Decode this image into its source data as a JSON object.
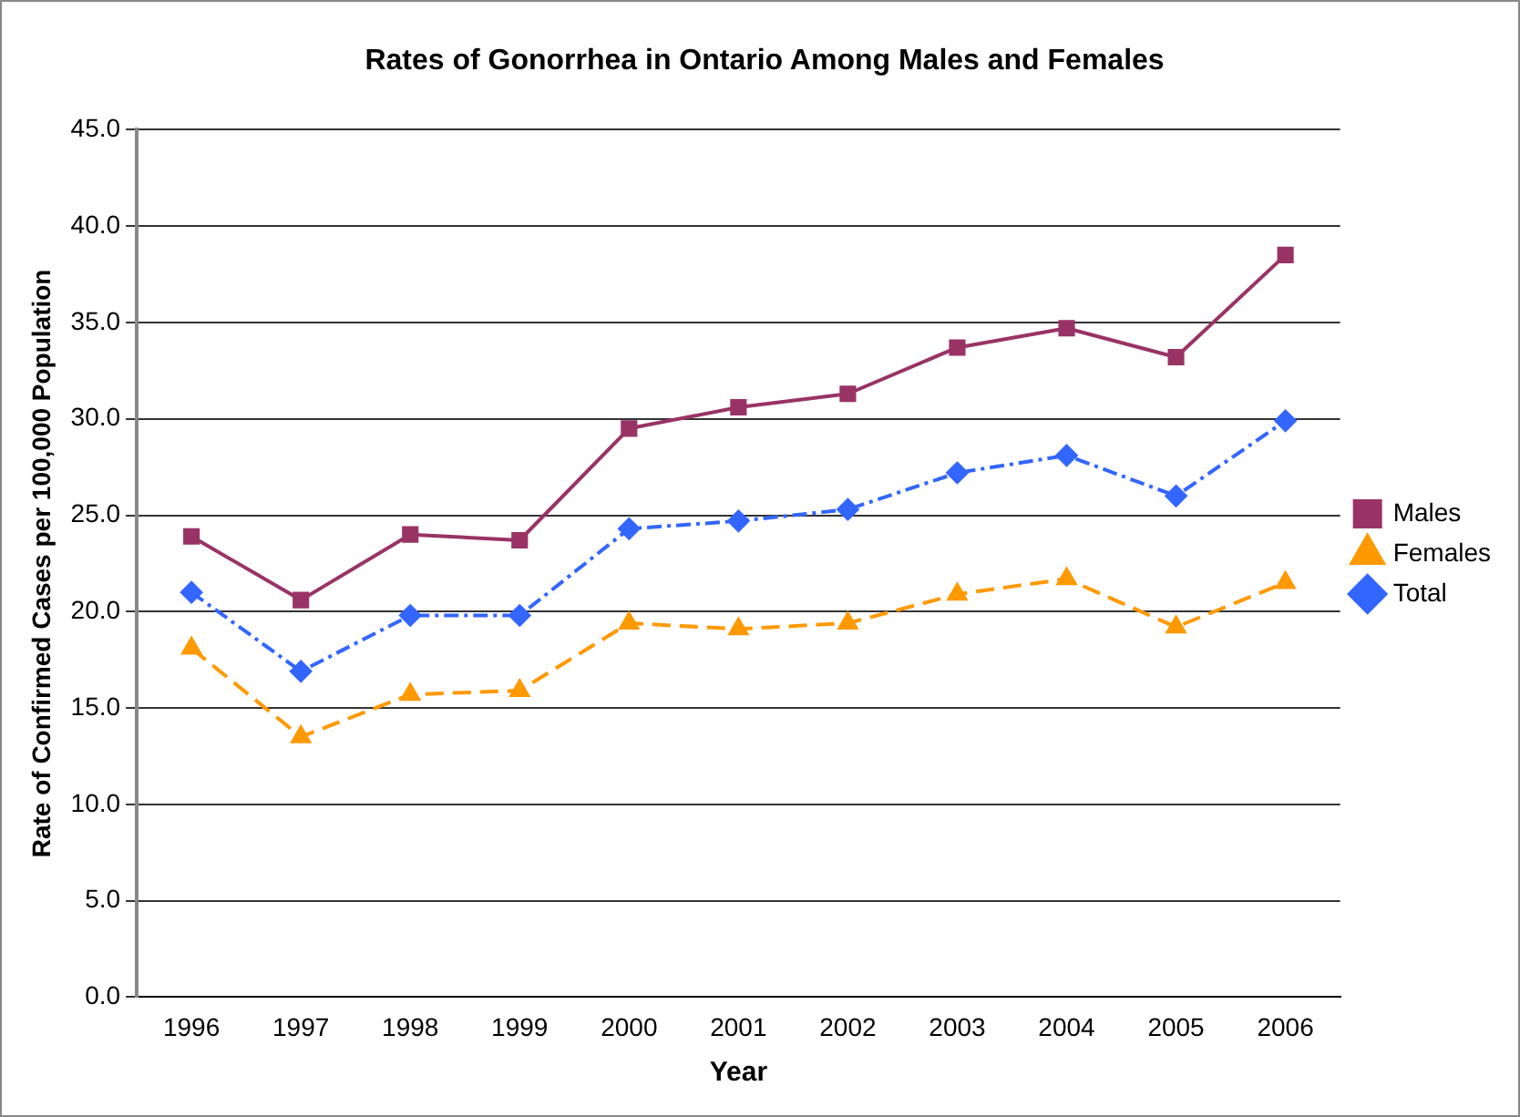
{
  "chart_data": {
    "type": "line",
    "title": "Rates of Gonorrhea in Ontario Among Males and Females",
    "xlabel": "Year",
    "ylabel": "Rate of Confirmed Cases per 100,000 Population",
    "categories": [
      "1996",
      "1997",
      "1998",
      "1999",
      "2000",
      "2001",
      "2002",
      "2003",
      "2004",
      "2005",
      "2006"
    ],
    "series": [
      {
        "name": "Males",
        "color": "#993366",
        "marker": "square",
        "line_style": "solid",
        "values": [
          23.9,
          20.6,
          24.0,
          23.7,
          29.5,
          30.6,
          31.3,
          33.7,
          34.7,
          33.2,
          38.5
        ]
      },
      {
        "name": "Females",
        "color": "#ff9900",
        "marker": "triangle",
        "line_style": "dashed",
        "values": [
          18.1,
          13.5,
          15.7,
          15.9,
          19.4,
          19.1,
          19.4,
          20.9,
          21.7,
          19.2,
          21.5
        ]
      },
      {
        "name": "Total",
        "color": "#3366ff",
        "marker": "diamond",
        "line_style": "dashdot",
        "values": [
          21.0,
          16.9,
          19.8,
          19.8,
          24.3,
          24.7,
          25.3,
          27.2,
          28.1,
          26.0,
          29.9
        ]
      }
    ],
    "ylim": [
      0,
      45
    ],
    "yticks": [
      {
        "value": 0,
        "label": "0.0"
      },
      {
        "value": 5,
        "label": "5.0"
      },
      {
        "value": 10,
        "label": "10.0"
      },
      {
        "value": 15,
        "label": "15.0"
      },
      {
        "value": 20,
        "label": "20.0"
      },
      {
        "value": 25,
        "label": "25.0"
      },
      {
        "value": 30,
        "label": "30.0"
      },
      {
        "value": 35,
        "label": "35.0"
      },
      {
        "value": 40,
        "label": "40.0"
      },
      {
        "value": 45,
        "label": "45.0"
      }
    ],
    "grid": "y",
    "legend": "right"
  }
}
